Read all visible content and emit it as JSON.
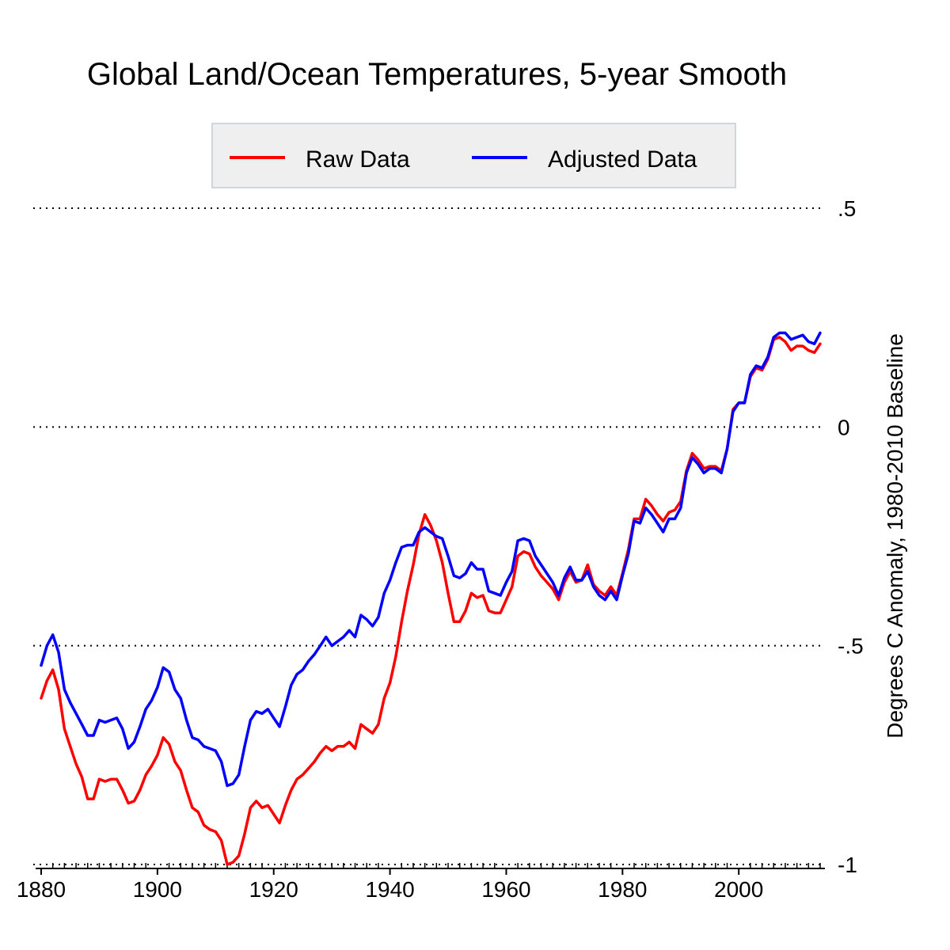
{
  "chart_data": {
    "type": "line",
    "title": "Global Land/Ocean Temperatures, 5-year Smooth",
    "xlabel": "",
    "ylabel": "Degrees C Anomaly, 1980-2010 Baseline",
    "xlim": [
      1880,
      2014
    ],
    "ylim": [
      -1,
      0.5
    ],
    "x_ticks": [
      {
        "value": 1880,
        "label": "1880"
      },
      {
        "value": 1900,
        "label": "1900"
      },
      {
        "value": 1920,
        "label": "1920"
      },
      {
        "value": 1940,
        "label": "1940"
      },
      {
        "value": 1960,
        "label": "1960"
      },
      {
        "value": 1980,
        "label": "1980"
      },
      {
        "value": 2000,
        "label": "2000"
      }
    ],
    "y_ticks": [
      {
        "value": 0.5,
        "label": ".5"
      },
      {
        "value": 0,
        "label": "0"
      },
      {
        "value": -0.5,
        "label": "-.5"
      },
      {
        "value": -1,
        "label": "-1"
      }
    ],
    "grid": "horizontal dotted",
    "legend": "top",
    "x": [
      1880,
      1881,
      1882,
      1883,
      1884,
      1885,
      1886,
      1887,
      1888,
      1889,
      1890,
      1891,
      1892,
      1893,
      1894,
      1895,
      1896,
      1897,
      1898,
      1899,
      1900,
      1901,
      1902,
      1903,
      1904,
      1905,
      1906,
      1907,
      1908,
      1909,
      1910,
      1911,
      1912,
      1913,
      1914,
      1915,
      1916,
      1917,
      1918,
      1919,
      1920,
      1921,
      1922,
      1923,
      1924,
      1925,
      1926,
      1927,
      1928,
      1929,
      1930,
      1931,
      1932,
      1933,
      1934,
      1935,
      1936,
      1937,
      1938,
      1939,
      1940,
      1941,
      1942,
      1943,
      1944,
      1945,
      1946,
      1947,
      1948,
      1949,
      1950,
      1951,
      1952,
      1953,
      1954,
      1955,
      1956,
      1957,
      1958,
      1959,
      1960,
      1961,
      1962,
      1963,
      1964,
      1965,
      1966,
      1967,
      1968,
      1969,
      1970,
      1971,
      1972,
      1973,
      1974,
      1975,
      1976,
      1977,
      1978,
      1979,
      1980,
      1981,
      1982,
      1983,
      1984,
      1985,
      1986,
      1987,
      1988,
      1989,
      1990,
      1991,
      1992,
      1993,
      1994,
      1995,
      1996,
      1997,
      1998,
      1999,
      2000,
      2001,
      2002,
      2003,
      2004,
      2005,
      2006,
      2007,
      2008,
      2009,
      2010,
      2011,
      2012,
      2013,
      2014
    ],
    "series": [
      {
        "name": "Raw Data",
        "color": "#ff0000",
        "values": [
          -0.62,
          -0.58,
          -0.555,
          -0.6,
          -0.69,
          -0.73,
          -0.77,
          -0.8,
          -0.85,
          -0.85,
          -0.805,
          -0.81,
          -0.805,
          -0.805,
          -0.83,
          -0.86,
          -0.855,
          -0.83,
          -0.795,
          -0.775,
          -0.75,
          -0.71,
          -0.725,
          -0.765,
          -0.785,
          -0.83,
          -0.87,
          -0.88,
          -0.91,
          -0.92,
          -0.925,
          -0.945,
          -1.0,
          -0.995,
          -0.98,
          -0.93,
          -0.87,
          -0.855,
          -0.87,
          -0.865,
          -0.885,
          -0.905,
          -0.865,
          -0.83,
          -0.805,
          -0.795,
          -0.78,
          -0.765,
          -0.745,
          -0.73,
          -0.74,
          -0.73,
          -0.73,
          -0.72,
          -0.735,
          -0.68,
          -0.69,
          -0.7,
          -0.68,
          -0.62,
          -0.585,
          -0.525,
          -0.445,
          -0.375,
          -0.315,
          -0.245,
          -0.2,
          -0.225,
          -0.26,
          -0.31,
          -0.38,
          -0.445,
          -0.445,
          -0.42,
          -0.38,
          -0.39,
          -0.385,
          -0.42,
          -0.425,
          -0.425,
          -0.395,
          -0.365,
          -0.295,
          -0.285,
          -0.29,
          -0.32,
          -0.34,
          -0.355,
          -0.37,
          -0.395,
          -0.355,
          -0.33,
          -0.355,
          -0.35,
          -0.315,
          -0.36,
          -0.375,
          -0.385,
          -0.365,
          -0.385,
          -0.335,
          -0.28,
          -0.21,
          -0.21,
          -0.165,
          -0.18,
          -0.2,
          -0.215,
          -0.195,
          -0.19,
          -0.17,
          -0.1,
          -0.06,
          -0.075,
          -0.095,
          -0.09,
          -0.09,
          -0.1,
          -0.05,
          0.04,
          0.055,
          0.055,
          0.115,
          0.135,
          0.13,
          0.155,
          0.2,
          0.205,
          0.195,
          0.175,
          0.185,
          0.185,
          0.175,
          0.17,
          0.19
        ]
      },
      {
        "name": "Adjusted Data",
        "color": "#0000ff",
        "values": [
          -0.545,
          -0.5,
          -0.475,
          -0.515,
          -0.6,
          -0.63,
          -0.655,
          -0.68,
          -0.705,
          -0.705,
          -0.67,
          -0.675,
          -0.67,
          -0.665,
          -0.69,
          -0.735,
          -0.72,
          -0.685,
          -0.645,
          -0.625,
          -0.595,
          -0.55,
          -0.56,
          -0.6,
          -0.62,
          -0.67,
          -0.71,
          -0.715,
          -0.73,
          -0.735,
          -0.74,
          -0.765,
          -0.82,
          -0.815,
          -0.795,
          -0.73,
          -0.67,
          -0.65,
          -0.655,
          -0.645,
          -0.665,
          -0.685,
          -0.64,
          -0.59,
          -0.565,
          -0.555,
          -0.535,
          -0.52,
          -0.5,
          -0.48,
          -0.5,
          -0.49,
          -0.48,
          -0.465,
          -0.48,
          -0.43,
          -0.44,
          -0.455,
          -0.435,
          -0.38,
          -0.35,
          -0.31,
          -0.275,
          -0.27,
          -0.27,
          -0.24,
          -0.23,
          -0.24,
          -0.25,
          -0.255,
          -0.295,
          -0.34,
          -0.345,
          -0.335,
          -0.31,
          -0.325,
          -0.325,
          -0.375,
          -0.38,
          -0.385,
          -0.355,
          -0.33,
          -0.26,
          -0.255,
          -0.26,
          -0.295,
          -0.315,
          -0.335,
          -0.355,
          -0.385,
          -0.345,
          -0.32,
          -0.35,
          -0.35,
          -0.33,
          -0.365,
          -0.385,
          -0.395,
          -0.375,
          -0.395,
          -0.34,
          -0.29,
          -0.215,
          -0.22,
          -0.185,
          -0.2,
          -0.22,
          -0.24,
          -0.21,
          -0.21,
          -0.185,
          -0.105,
          -0.07,
          -0.085,
          -0.105,
          -0.095,
          -0.095,
          -0.105,
          -0.05,
          0.035,
          0.055,
          0.055,
          0.12,
          0.14,
          0.135,
          0.16,
          0.205,
          0.215,
          0.215,
          0.2,
          0.205,
          0.21,
          0.195,
          0.19,
          0.215
        ]
      }
    ]
  }
}
